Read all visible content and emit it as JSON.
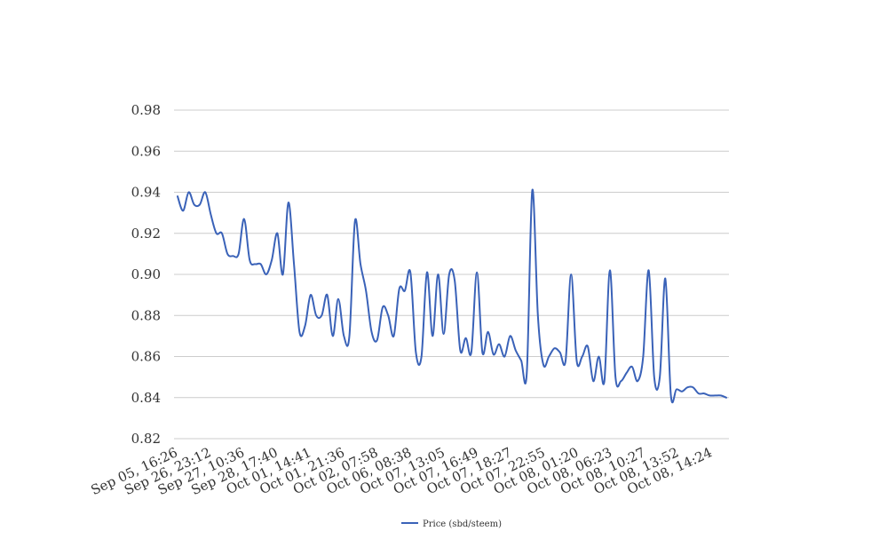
{
  "chart_data": {
    "type": "line",
    "title": "",
    "xlabel": "",
    "ylabel": "",
    "ylim": [
      0.82,
      0.98
    ],
    "y_ticks": [
      "0.82",
      "0.84",
      "0.86",
      "0.88",
      "0.90",
      "0.92",
      "0.94",
      "0.96",
      "0.98"
    ],
    "y_tick_values": [
      0.82,
      0.84,
      0.86,
      0.88,
      0.9,
      0.92,
      0.94,
      0.96,
      0.98
    ],
    "x_tick_labels": [
      "Sep 05, 16:26",
      "Sep 26, 23:12",
      "Sep 27, 10:36",
      "Sep 28, 17:40",
      "Oct 01, 14:41",
      "Oct 01, 21:36",
      "Oct 02, 07:58",
      "Oct 06, 08:38",
      "Oct 07, 13:05",
      "Oct 07, 16:49",
      "Oct 07, 18:27",
      "Oct 07, 22:55",
      "Oct 08, 01:20",
      "Oct 08, 06:23",
      "Oct 08, 10:27",
      "Oct 08, 13:52",
      "Oct 08, 14:24"
    ],
    "grid": true,
    "legend_position": "bottom",
    "series": [
      {
        "name": "Price (sbd/steem)",
        "color": "#3a62b8",
        "values": [
          0.938,
          0.931,
          0.94,
          0.934,
          0.934,
          0.94,
          0.929,
          0.92,
          0.92,
          0.91,
          0.909,
          0.91,
          0.927,
          0.907,
          0.905,
          0.905,
          0.9,
          0.907,
          0.92,
          0.9,
          0.935,
          0.905,
          0.872,
          0.875,
          0.89,
          0.88,
          0.88,
          0.89,
          0.87,
          0.888,
          0.87,
          0.87,
          0.926,
          0.905,
          0.892,
          0.872,
          0.868,
          0.884,
          0.88,
          0.87,
          0.893,
          0.892,
          0.901,
          0.862,
          0.86,
          0.901,
          0.87,
          0.9,
          0.871,
          0.9,
          0.897,
          0.863,
          0.869,
          0.862,
          0.901,
          0.862,
          0.872,
          0.861,
          0.866,
          0.86,
          0.87,
          0.863,
          0.858,
          0.852,
          0.941,
          0.88,
          0.856,
          0.86,
          0.864,
          0.862,
          0.858,
          0.9,
          0.858,
          0.86,
          0.865,
          0.848,
          0.86,
          0.848,
          0.902,
          0.85,
          0.848,
          0.852,
          0.855,
          0.848,
          0.86,
          0.902,
          0.85,
          0.85,
          0.898,
          0.841,
          0.844,
          0.843,
          0.845,
          0.845,
          0.842,
          0.842,
          0.841,
          0.841,
          0.841,
          0.84
        ]
      }
    ]
  }
}
